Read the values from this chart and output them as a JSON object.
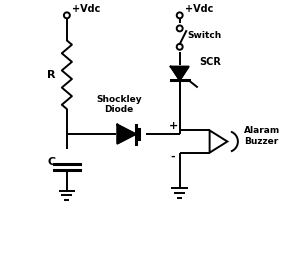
{
  "bg_color": "#ffffff",
  "line_color": "#000000",
  "lw": 1.4,
  "fig_w": 3.0,
  "fig_h": 2.78,
  "dpi": 100,
  "labels": {
    "vdc_left": "+Vdc",
    "vdc_right": "+Vdc",
    "R": "R",
    "C": "C",
    "shockley": "Shockley\nDiode",
    "scr": "SCR",
    "switch": "Switch",
    "buzzer": "Alaram\nBuzzer",
    "plus": "+",
    "minus": "-"
  },
  "coords": {
    "xlim": [
      0,
      10
    ],
    "ylim": [
      0,
      9.27
    ]
  }
}
